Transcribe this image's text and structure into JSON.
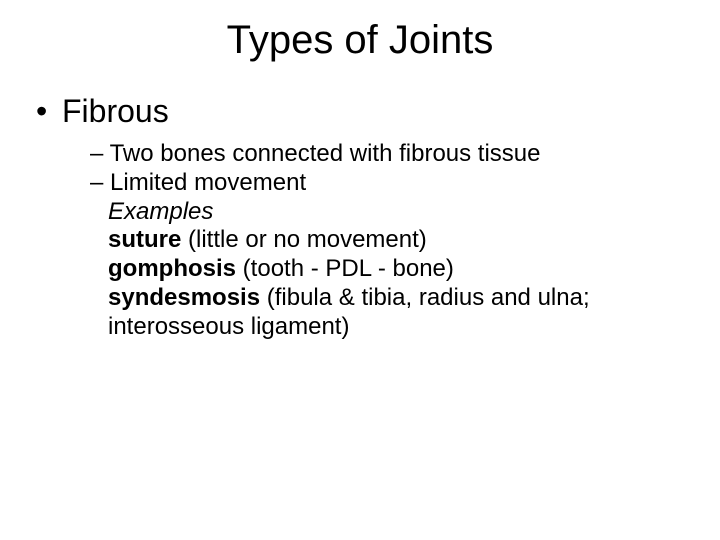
{
  "slide": {
    "title": "Types of Joints",
    "bullet1": {
      "marker": "•",
      "text": "Fibrous"
    },
    "sub": {
      "dash": "–",
      "item1": "Two bones connected with fibrous tissue",
      "item2": "Limited movement",
      "examples_label": "Examples",
      "ex1_bold": "suture",
      "ex1_rest": " (little or no movement)",
      "ex2_bold": "gomphosis",
      "ex2_rest": " (tooth - PDL - bone)",
      "ex3_bold": "syndesmosis",
      "ex3_rest": " (fibula & tibia, radius and ulna; interosseous ligament)"
    }
  },
  "style": {
    "background_color": "#ffffff",
    "text_color": "#000000",
    "title_fontsize": 40,
    "level1_fontsize": 32,
    "level2_fontsize": 24,
    "font_family": "Arial"
  }
}
